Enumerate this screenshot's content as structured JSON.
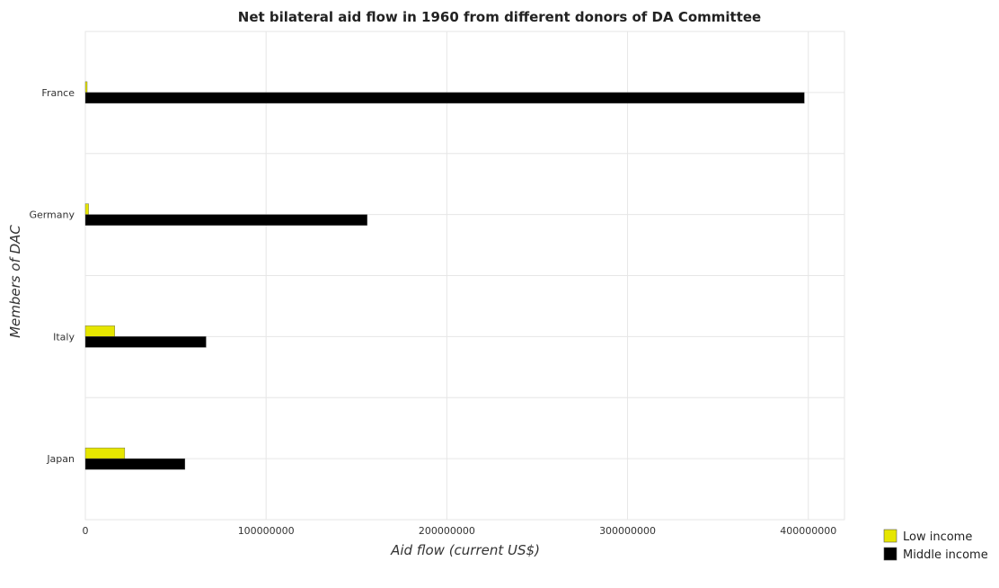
{
  "chart_data": {
    "type": "bar",
    "orientation": "horizontal",
    "title": "Net bilateral aid flow in 1960 from different donors of DA Committee",
    "xlabel": "Aid flow (current US$)",
    "ylabel": "Members of DAC",
    "categories": [
      "France",
      "Germany",
      "Italy",
      "Japan"
    ],
    "series": [
      {
        "name": "Low income",
        "color": "#e6e600",
        "values": [
          1000000,
          1800000,
          16300000,
          21800000
        ]
      },
      {
        "name": "Middle income",
        "color": "#000000",
        "values": [
          397800000,
          155900000,
          66800000,
          55100000
        ]
      }
    ],
    "xlim": [
      0,
      420000000
    ],
    "xticks": [
      0,
      100000000,
      200000000,
      300000000,
      400000000
    ],
    "xtick_labels": [
      "0",
      "100000000",
      "200000000",
      "300000000",
      "400000000"
    ],
    "grid": true,
    "legend_position": "bottom-right"
  }
}
